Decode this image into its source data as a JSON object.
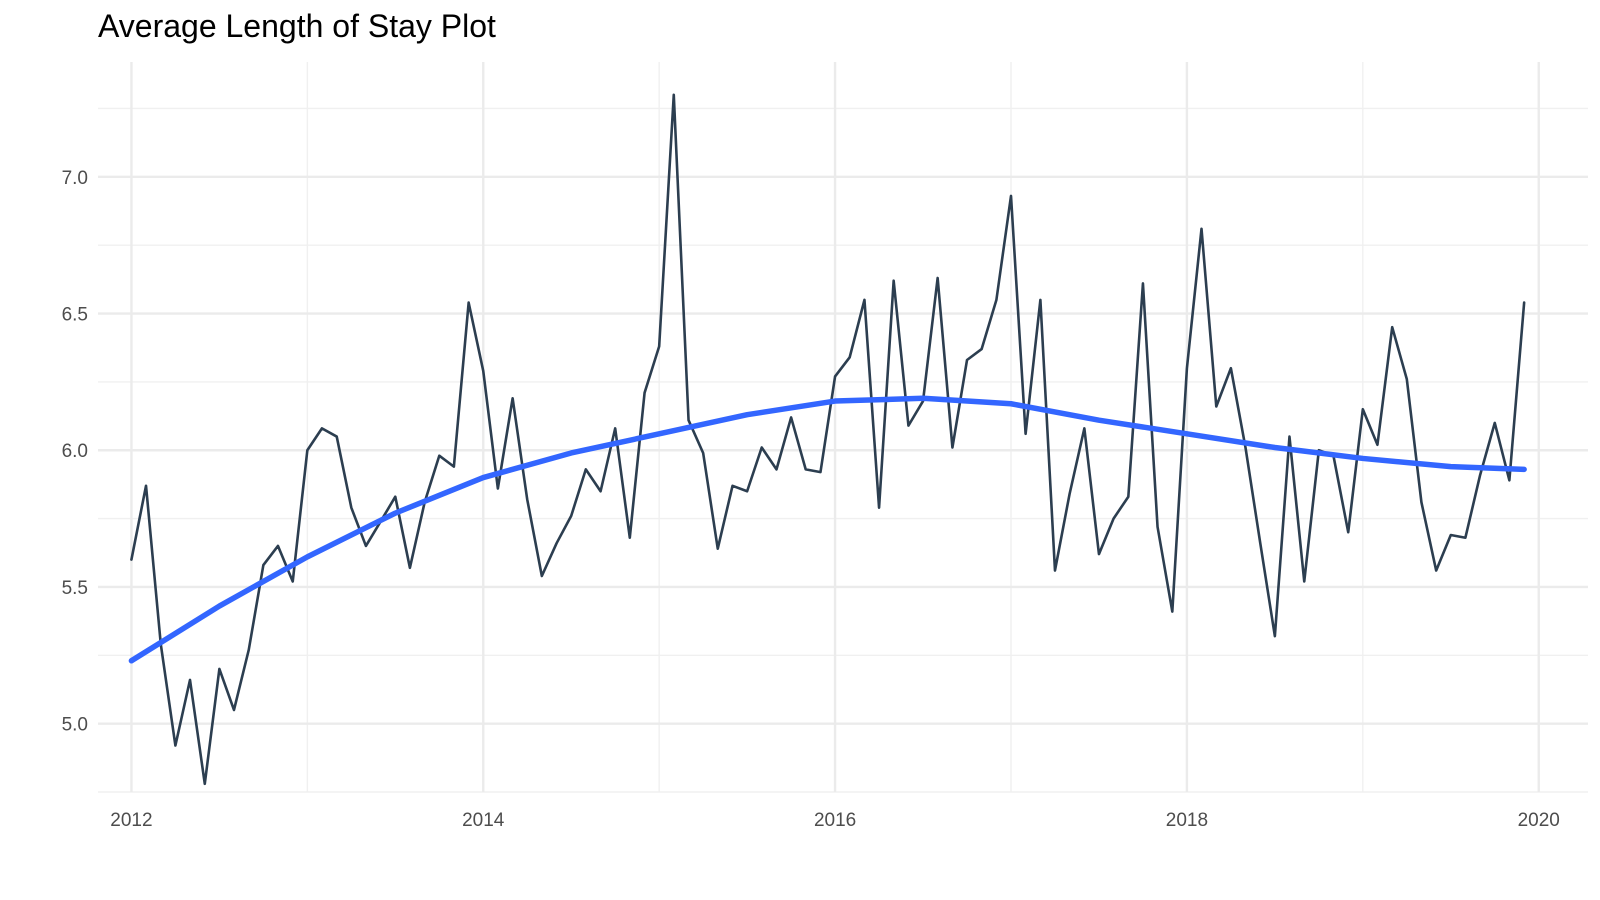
{
  "chart_data": {
    "type": "line",
    "title": "Average Length of Stay Plot",
    "xlabel": "",
    "ylabel": "",
    "xlim": [
      2011.81,
      2020.28
    ],
    "ylim": [
      4.75,
      7.42
    ],
    "grid": true,
    "legend": "none",
    "x_ticks": [
      2012,
      2014,
      2016,
      2018,
      2020
    ],
    "x_tick_labels": [
      "2012",
      "2014",
      "2016",
      "2018",
      "2020"
    ],
    "y_ticks": [
      5.0,
      5.5,
      6.0,
      6.5,
      7.0
    ],
    "y_tick_labels": [
      "5.0",
      "5.5",
      "6.0",
      "6.5",
      "7.0"
    ],
    "series": [
      {
        "type": "line",
        "color": "#2c3e50",
        "x": [
          2012.0,
          2012.083,
          2012.167,
          2012.25,
          2012.333,
          2012.417,
          2012.5,
          2012.583,
          2012.667,
          2012.75,
          2012.833,
          2012.917,
          2013.0,
          2013.083,
          2013.167,
          2013.25,
          2013.333,
          2013.417,
          2013.5,
          2013.583,
          2013.667,
          2013.75,
          2013.833,
          2013.917,
          2014.0,
          2014.083,
          2014.167,
          2014.25,
          2014.333,
          2014.417,
          2014.5,
          2014.583,
          2014.667,
          2014.75,
          2014.833,
          2014.917,
          2015.0,
          2015.083,
          2015.167,
          2015.25,
          2015.333,
          2015.417,
          2015.5,
          2015.583,
          2015.667,
          2015.75,
          2015.833,
          2015.917,
          2016.0,
          2016.083,
          2016.167,
          2016.25,
          2016.333,
          2016.417,
          2016.5,
          2016.583,
          2016.667,
          2016.75,
          2016.833,
          2016.917,
          2017.0,
          2017.083,
          2017.167,
          2017.25,
          2017.333,
          2017.417,
          2017.5,
          2017.583,
          2017.667,
          2017.75,
          2017.833,
          2017.917,
          2018.0,
          2018.083,
          2018.167,
          2018.25,
          2018.333,
          2018.417,
          2018.5,
          2018.583,
          2018.667,
          2018.75,
          2018.833,
          2018.917,
          2019.0,
          2019.083,
          2019.167,
          2019.25,
          2019.333,
          2019.417,
          2019.5,
          2019.583,
          2019.667,
          2019.75,
          2019.833,
          2019.917
        ],
        "y": [
          5.6,
          5.87,
          5.29,
          4.92,
          5.16,
          4.78,
          5.2,
          5.05,
          5.27,
          5.58,
          5.65,
          5.52,
          6.0,
          6.08,
          6.05,
          5.79,
          5.65,
          5.74,
          5.83,
          5.57,
          5.81,
          5.98,
          5.94,
          6.54,
          6.29,
          5.86,
          6.19,
          5.82,
          5.54,
          5.66,
          5.76,
          5.93,
          5.85,
          6.08,
          5.68,
          6.21,
          6.38,
          7.3,
          6.11,
          5.99,
          5.64,
          5.87,
          5.85,
          6.01,
          5.93,
          6.12,
          5.93,
          5.92,
          6.27,
          6.34,
          6.55,
          5.79,
          6.62,
          6.09,
          6.18,
          6.63,
          6.01,
          6.33,
          6.37,
          6.55,
          6.93,
          6.06,
          6.55,
          5.56,
          5.84,
          6.08,
          5.62,
          5.75,
          5.83,
          6.61,
          5.72,
          5.41,
          6.3,
          6.81,
          6.16,
          6.3,
          6.01,
          5.66,
          5.32,
          6.05,
          5.52,
          6.0,
          5.98,
          5.7,
          6.15,
          6.02,
          6.45,
          6.26,
          5.81,
          5.56,
          5.69,
          5.68,
          5.91,
          6.1,
          5.89,
          6.54
        ]
      },
      {
        "type": "smooth",
        "color": "#3366ff",
        "x": [
          2012.0,
          2012.5,
          2013.0,
          2013.5,
          2014.0,
          2014.5,
          2015.0,
          2015.5,
          2016.0,
          2016.5,
          2017.0,
          2017.5,
          2018.0,
          2018.5,
          2019.0,
          2019.5,
          2019.917
        ],
        "y": [
          5.23,
          5.43,
          5.61,
          5.77,
          5.9,
          5.99,
          6.06,
          6.13,
          6.18,
          6.19,
          6.17,
          6.11,
          6.06,
          6.01,
          5.97,
          5.94,
          5.93
        ]
      }
    ]
  }
}
